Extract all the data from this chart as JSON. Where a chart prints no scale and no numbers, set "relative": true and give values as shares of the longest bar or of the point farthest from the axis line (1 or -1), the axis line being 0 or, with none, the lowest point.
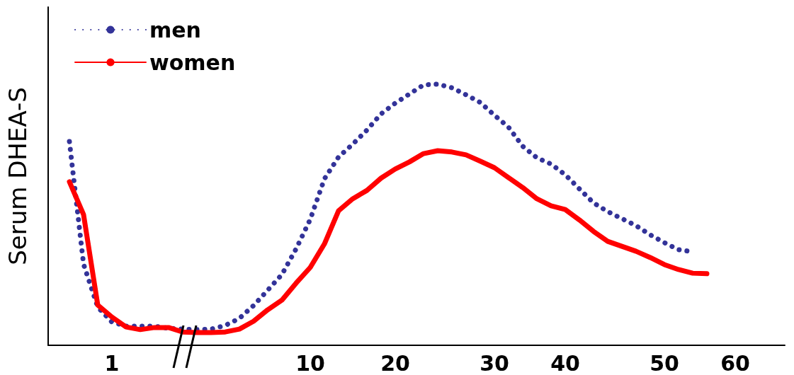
{
  "chart_data": {
    "type": "line",
    "ylabel": "Serum DHEA-S",
    "relative": true,
    "legend": "top left",
    "grid": false,
    "marker": "none",
    "tick_labels": "x",
    "categories": [
      null,
      null,
      null,
      null,
      "1",
      null,
      null,
      null,
      null,
      null,
      null,
      null,
      null,
      null,
      null,
      null,
      null,
      null,
      "10",
      null,
      null,
      null,
      null,
      null,
      "20",
      null,
      null,
      null,
      null,
      null,
      null,
      "30",
      null,
      null,
      null,
      null,
      "40",
      null,
      null,
      null,
      null,
      null,
      null,
      "50",
      null,
      null,
      null,
      null,
      "60",
      null,
      null,
      null
    ],
    "series": [
      {
        "name": "men",
        "color": "#333399",
        "line_style": "dotted",
        "values": [
          null,
          0.78,
          0.31,
          0.146,
          0.089,
          0.073,
          0.073,
          0.073,
          0.065,
          0.062,
          0.06,
          0.062,
          0.076,
          0.103,
          0.152,
          0.211,
          0.271,
          0.369,
          0.482,
          0.637,
          0.721,
          0.77,
          0.824,
          0.886,
          0.927,
          0.962,
          0.997,
          1,
          0.986,
          0.959,
          0.93,
          0.881,
          0.835,
          0.762,
          0.718,
          0.694,
          0.653,
          0.599,
          0.545,
          0.512,
          0.485,
          0.458,
          0.423,
          0.393,
          0.366,
          0.358,
          null,
          null,
          null,
          null,
          null,
          null
        ]
      },
      {
        "name": "women",
        "color": "#ff0000",
        "line_style": "solid",
        "values": [
          null,
          0.626,
          0.5,
          0.154,
          0.108,
          0.07,
          0.06,
          0.068,
          0.068,
          0.051,
          0.049,
          0.049,
          0.051,
          0.062,
          0.092,
          0.136,
          0.173,
          0.238,
          0.298,
          0.388,
          0.515,
          0.561,
          0.593,
          0.64,
          0.675,
          0.702,
          0.734,
          0.745,
          0.74,
          0.729,
          0.705,
          0.68,
          0.642,
          0.604,
          0.561,
          0.534,
          0.52,
          0.48,
          0.436,
          0.398,
          0.379,
          0.36,
          0.336,
          0.309,
          0.29,
          0.276,
          0.274,
          null,
          null,
          null,
          null,
          null
        ]
      }
    ]
  }
}
